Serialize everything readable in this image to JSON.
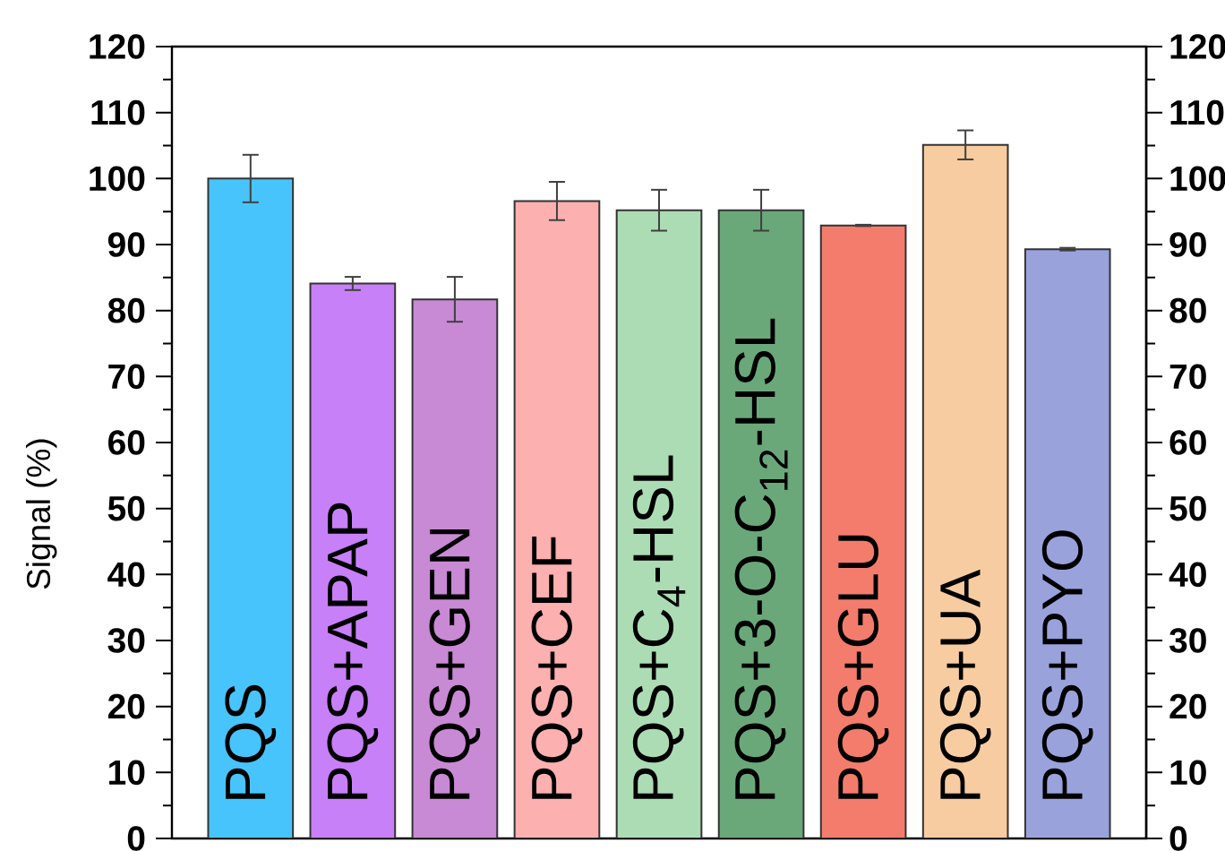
{
  "chart_data": {
    "type": "bar",
    "ylabel": "Signal (%)",
    "categories": [
      "PQS",
      "PQS+APAP",
      "PQS+GEN",
      "PQS+CEF",
      "PQS+C$_{4}$-HSL",
      "PQS+3-O-C$_{12}$-HSL",
      "PQS+GLU",
      "PQS+UA",
      "PQS+PYO"
    ],
    "values": [
      100,
      84.1,
      81.7,
      96.6,
      95.2,
      95.2,
      92.9,
      105.1,
      89.3
    ],
    "errors": [
      3.6,
      1,
      3.4,
      2.9,
      3.1,
      3.1,
      0.1,
      2.2,
      0.2
    ],
    "colors": [
      "#48c4fc",
      "#c880f8",
      "#c88ad4",
      "#fcb0b0",
      "#acdcb4",
      "#6aa87a",
      "#f47c6c",
      "#f6cca0",
      "#9aa2dc"
    ],
    "ylim": [
      0,
      120
    ],
    "yticks": [
      0,
      10,
      20,
      30,
      40,
      50,
      60,
      70,
      80,
      90,
      100,
      110,
      120
    ],
    "y2lim": [
      0,
      120
    ],
    "y2ticks": [
      0,
      10,
      20,
      30,
      40,
      50,
      60,
      70,
      80,
      90,
      100,
      110,
      120
    ]
  }
}
